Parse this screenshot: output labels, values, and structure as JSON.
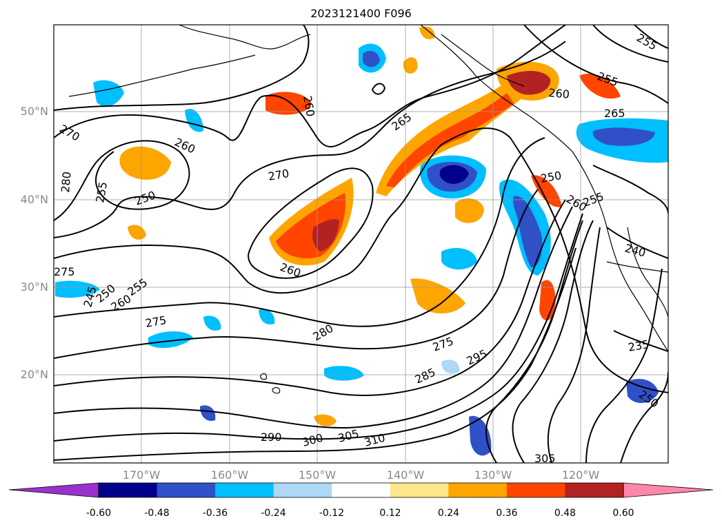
{
  "title": "2023121400 F096",
  "map": {
    "projection": "plate-carree",
    "lon_labels": [
      "170°W",
      "160°W",
      "150°W",
      "140°W",
      "130°W",
      "120°W"
    ],
    "lat_labels": [
      "50°N",
      "40°N",
      "30°N",
      "20°N"
    ],
    "gridlines": true,
    "coastlines": true,
    "contour_color": "#000000",
    "contour_labels": [
      "260",
      "270",
      "265",
      "260",
      "280",
      "275",
      "255",
      "250",
      "270",
      "260",
      "280",
      "275",
      "295",
      "285",
      "290",
      "300",
      "305",
      "310",
      "305",
      "250",
      "235",
      "240",
      "260",
      "255",
      "250",
      "265",
      "260",
      "255",
      "255",
      "250",
      "260",
      "275",
      "245",
      "255"
    ]
  },
  "colorbar": {
    "ticks": [
      "-0.60",
      "-0.48",
      "-0.36",
      "-0.24",
      "-0.12",
      "0.12",
      "0.24",
      "0.36",
      "0.48",
      "0.60"
    ],
    "colors": [
      "#9932cc",
      "#00008b",
      "#3050c8",
      "#00bfff",
      "#add8f6",
      "#ffffff",
      "#ffe68a",
      "#ffa500",
      "#ff4500",
      "#b22222",
      "#ff88aa"
    ],
    "extend": "both"
  }
}
